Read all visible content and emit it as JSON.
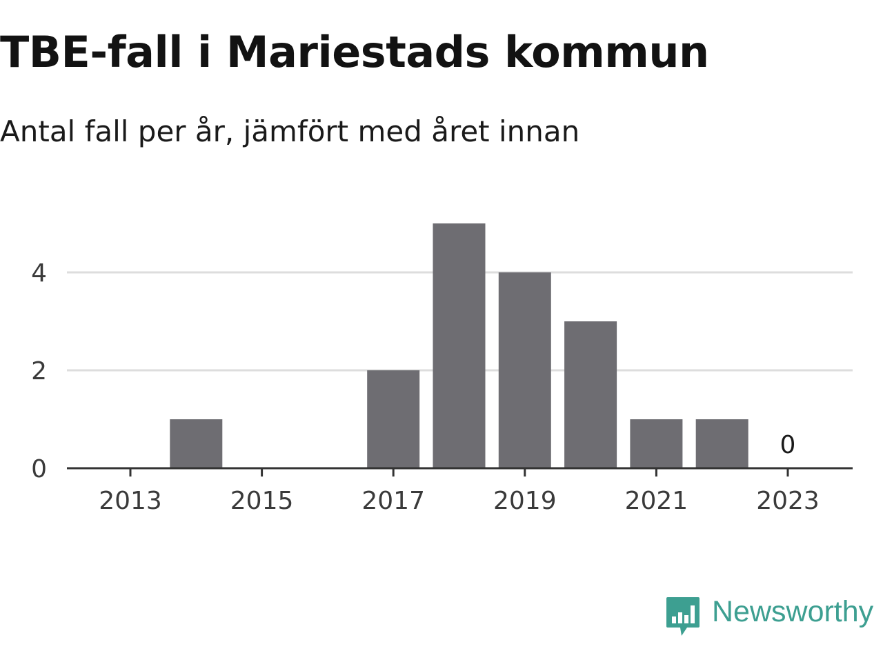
{
  "title": "TBE-fall i Mariestads kommun",
  "subtitle": "Antal fall per år, jämfört med året innan",
  "brand": {
    "name": "Newsworthy",
    "logo_icon": "newsworthy-bar-chart-logo-icon",
    "color": "#3d9f91"
  },
  "chart_data": {
    "type": "bar",
    "categories": [
      "2013",
      "2014",
      "2015",
      "2016",
      "2017",
      "2018",
      "2019",
      "2020",
      "2021",
      "2022",
      "2023"
    ],
    "values": [
      0,
      1,
      0,
      0,
      2,
      5,
      4,
      3,
      1,
      1,
      0
    ],
    "x_tick_labels": [
      "2013",
      "2015",
      "2017",
      "2019",
      "2021",
      "2023"
    ],
    "y_tick_labels": [
      "0",
      "2",
      "4"
    ],
    "ylim": [
      0,
      5
    ],
    "annotations": [
      {
        "category": "2023",
        "text": "0"
      }
    ],
    "bar_color": "#6e6d72",
    "grid": true,
    "xlabel": "",
    "ylabel": ""
  }
}
